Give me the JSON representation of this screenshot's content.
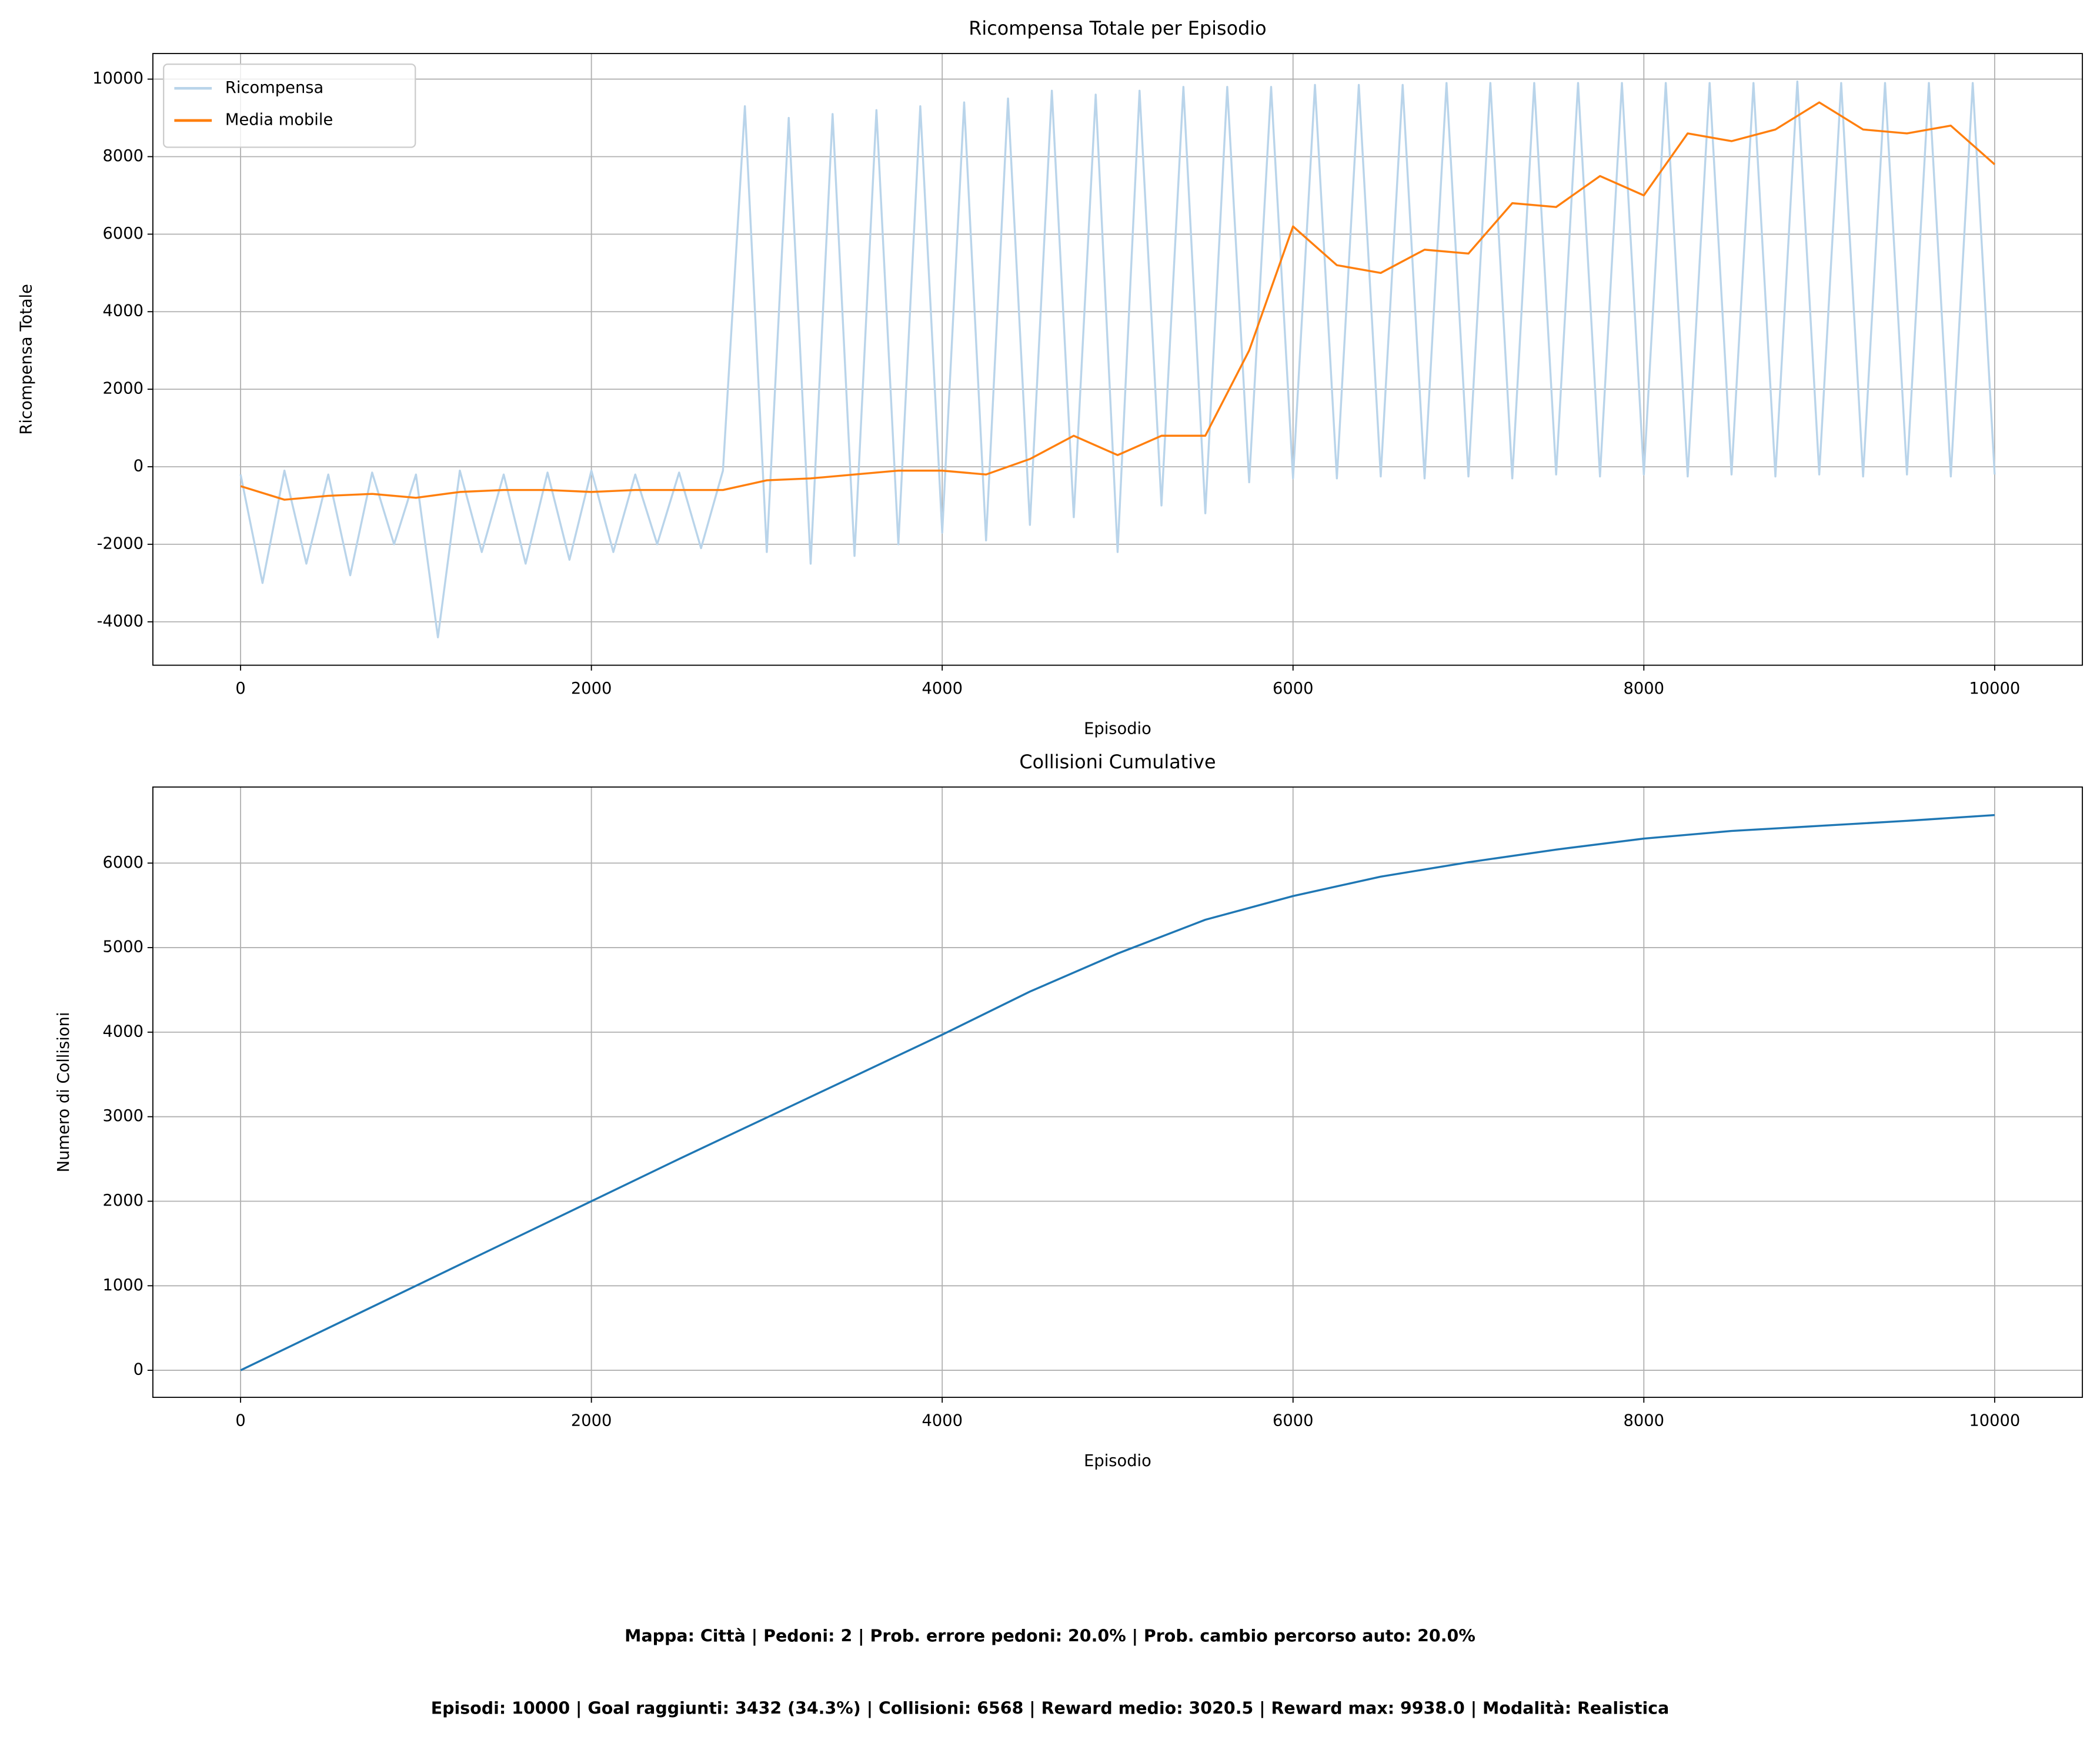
{
  "chart_data": [
    {
      "type": "line",
      "title": "Ricompensa Totale per Episodio",
      "xlabel": "Episodio",
      "ylabel": "Ricompensa Totale",
      "xlim": [
        -500,
        10500
      ],
      "xticks": [
        0,
        2000,
        4000,
        6000,
        8000,
        10000
      ],
      "ylim": [
        -5120,
        10660
      ],
      "yticks": [
        -4000,
        -2000,
        0,
        2000,
        4000,
        6000,
        8000,
        10000
      ],
      "grid": true,
      "legend": "upper-left",
      "series": [
        {
          "name": "Ricompensa",
          "color": "#b9d4ea",
          "x": [
            0,
            125,
            250,
            375,
            500,
            625,
            750,
            875,
            1000,
            1125,
            1250,
            1375,
            1500,
            1625,
            1750,
            1875,
            2000,
            2125,
            2250,
            2375,
            2500,
            2625,
            2750,
            2875,
            3000,
            3125,
            3250,
            3375,
            3500,
            3625,
            3750,
            3875,
            4000,
            4125,
            4250,
            4375,
            4500,
            4625,
            4750,
            4875,
            5000,
            5125,
            5250,
            5375,
            5500,
            5625,
            5750,
            5875,
            6000,
            6125,
            6250,
            6375,
            6500,
            6625,
            6750,
            6875,
            7000,
            7125,
            7250,
            7375,
            7500,
            7625,
            7750,
            7875,
            8000,
            8125,
            8250,
            8375,
            8500,
            8625,
            8750,
            8875,
            9000,
            9125,
            9250,
            9375,
            9500,
            9625,
            9750,
            9875,
            10000
          ],
          "values": [
            -200,
            -3000,
            -100,
            -2500,
            -200,
            -2800,
            -150,
            -2000,
            -200,
            -4400,
            -100,
            -2200,
            -200,
            -2500,
            -150,
            -2400,
            -100,
            -2200,
            -200,
            -2000,
            -150,
            -2100,
            -100,
            9300,
            -2200,
            9000,
            -2500,
            9100,
            -2300,
            9200,
            -2000,
            9300,
            -1700,
            9400,
            -1900,
            9500,
            -1500,
            9700,
            -1300,
            9600,
            -2200,
            9700,
            -1000,
            9800,
            -1200,
            9800,
            -400,
            9800,
            -300,
            9850,
            -300,
            9850,
            -250,
            9850,
            -300,
            9900,
            -250,
            9900,
            -300,
            9900,
            -200,
            9900,
            -250,
            9900,
            -200,
            9900,
            -250,
            9900,
            -200,
            9900,
            -250,
            9938,
            -200,
            9900,
            -250,
            9900,
            -200,
            9900,
            -250,
            9900,
            -200
          ]
        },
        {
          "name": "Media mobile",
          "color": "#ff7f0e",
          "x": [
            0,
            250,
            500,
            750,
            1000,
            1250,
            1500,
            1750,
            2000,
            2250,
            2500,
            2750,
            3000,
            3250,
            3500,
            3750,
            4000,
            4250,
            4500,
            4750,
            5000,
            5250,
            5500,
            5750,
            6000,
            6250,
            6500,
            6750,
            7000,
            7250,
            7500,
            7750,
            8000,
            8250,
            8500,
            8750,
            9000,
            9250,
            9500,
            9750,
            10000
          ],
          "values": [
            -500,
            -850,
            -750,
            -700,
            -800,
            -650,
            -600,
            -600,
            -650,
            -600,
            -600,
            -600,
            -350,
            -300,
            -200,
            -100,
            -100,
            -200,
            200,
            800,
            300,
            800,
            800,
            3000,
            6200,
            5200,
            5000,
            5600,
            5500,
            6800,
            6700,
            7500,
            7000,
            8600,
            8400,
            8700,
            9400,
            8700,
            8600,
            8800,
            7800
          ]
        }
      ]
    },
    {
      "type": "line",
      "title": "Collisioni Cumulative",
      "xlabel": "Episodio",
      "ylabel": "Numero di Collisioni",
      "xlim": [
        -500,
        10500
      ],
      "xticks": [
        0,
        2000,
        4000,
        6000,
        8000,
        10000
      ],
      "ylim": [
        -320,
        6900
      ],
      "yticks": [
        0,
        1000,
        2000,
        3000,
        4000,
        5000,
        6000
      ],
      "grid": true,
      "series": [
        {
          "color": "#1f77b4",
          "x": [
            0,
            500,
            1000,
            1500,
            2000,
            2500,
            3000,
            3500,
            4000,
            4500,
            5000,
            5500,
            6000,
            6500,
            7000,
            7500,
            8000,
            8500,
            9000,
            9500,
            10000
          ],
          "values": [
            0,
            500,
            1000,
            1500,
            2000,
            2500,
            2990,
            3480,
            3970,
            4480,
            4930,
            5330,
            5610,
            5840,
            6010,
            6160,
            6290,
            6380,
            6440,
            6500,
            6568
          ]
        }
      ]
    }
  ],
  "footer": [
    "Mappa: Città | Pedoni: 2 | Prob. errore pedoni: 20.0% | Prob. cambio percorso auto: 20.0%",
    "Episodi: 10000 | Goal raggiunti: 3432 (34.3%) | Collisioni: 6568 | Reward medio: 3020.5 | Reward max: 9938.0 | Modalità: Realistica"
  ]
}
